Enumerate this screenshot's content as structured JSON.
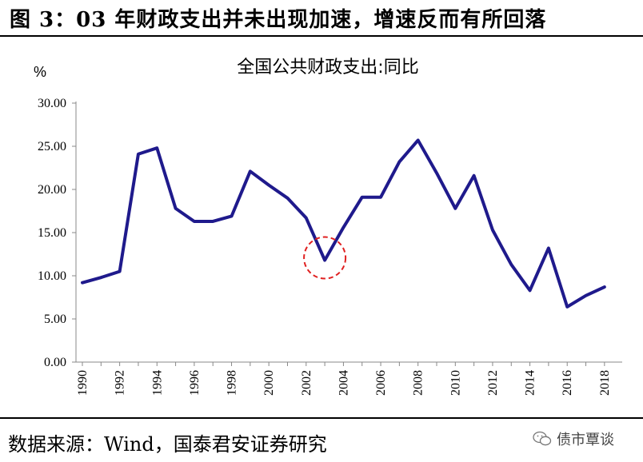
{
  "header": {
    "title": "图 3：03 年财政支出并未出现加速，增速反而有所回落"
  },
  "footer": {
    "source": "数据来源：Wind，国泰君安证券研究",
    "watermark": "债市覃谈"
  },
  "chart_data": {
    "type": "line",
    "title": "全国公共财政支出:同比",
    "ylabel": "%",
    "xlabel": "",
    "ylim": [
      0,
      30
    ],
    "yticks": [
      "0.00",
      "5.00",
      "10.00",
      "15.00",
      "20.00",
      "25.00",
      "30.00"
    ],
    "xticks": [
      "1990",
      "1992",
      "1994",
      "1996",
      "1998",
      "2000",
      "2002",
      "2004",
      "2006",
      "2008",
      "2010",
      "2012",
      "2014",
      "2016",
      "2018"
    ],
    "x": [
      1990,
      1991,
      1992,
      1993,
      1994,
      1995,
      1996,
      1997,
      1998,
      1999,
      2000,
      2001,
      2002,
      2003,
      2004,
      2005,
      2006,
      2007,
      2008,
      2009,
      2010,
      2011,
      2012,
      2013,
      2014,
      2015,
      2016,
      2017,
      2018
    ],
    "series": [
      {
        "name": "",
        "color": "#1f1a8c",
        "values": [
          9.2,
          9.8,
          10.5,
          24.1,
          24.8,
          17.8,
          16.3,
          16.3,
          16.9,
          22.1,
          20.5,
          19.0,
          16.7,
          11.8,
          15.6,
          19.1,
          19.1,
          23.2,
          25.7,
          21.9,
          17.8,
          21.6,
          15.3,
          11.3,
          8.3,
          13.2,
          6.4,
          7.7,
          8.7
        ]
      }
    ],
    "highlight": {
      "x": 2003,
      "y": 11.8,
      "color": "#e02020"
    },
    "grid": false,
    "legend": "none"
  }
}
